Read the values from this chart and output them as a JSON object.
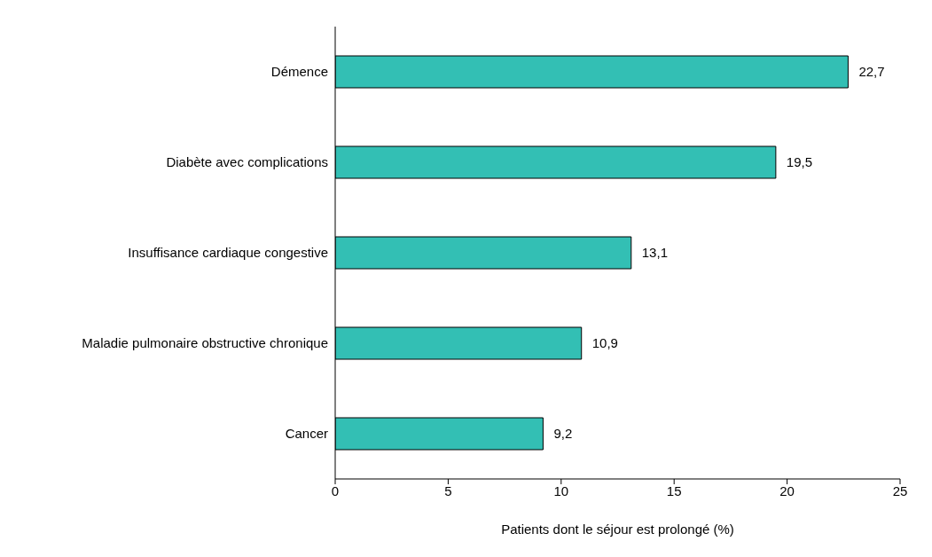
{
  "chart_data": {
    "type": "bar",
    "orientation": "horizontal",
    "categories": [
      "Démence",
      "Diabète avec complications",
      "Insuffisance cardiaque congestive",
      "Maladie pulmonaire obstructive chronique",
      "Cancer"
    ],
    "values": [
      22.7,
      19.5,
      13.1,
      10.9,
      9.2
    ],
    "value_labels": [
      "22,7",
      "19,5",
      "13,1",
      "10,9",
      "9,2"
    ],
    "color": "#33bfb4",
    "xlim": [
      0,
      25
    ],
    "xticks": [
      0,
      5,
      10,
      15,
      20,
      25
    ],
    "xlabel": "Patients dont le séjour est prolongé (%)",
    "grid": false,
    "legend": false
  }
}
